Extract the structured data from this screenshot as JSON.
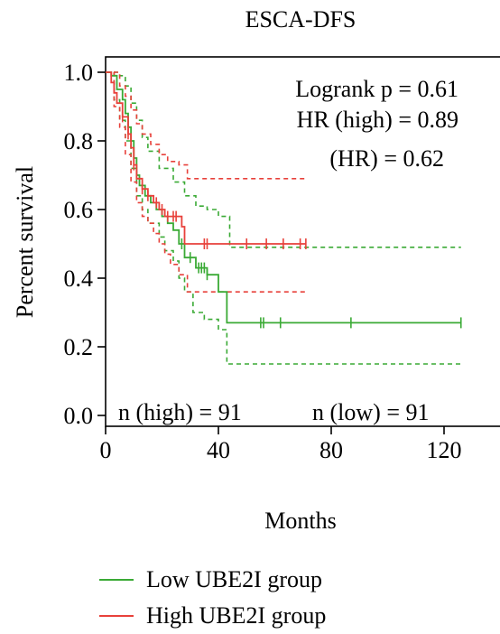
{
  "chart_data": {
    "type": "line",
    "title": "ESCA-DFS",
    "xlabel": "Months",
    "ylabel": "Percent survival",
    "xlim": [
      0,
      130
    ],
    "ylim": [
      0,
      1.05
    ],
    "xticks": [
      0,
      40,
      80,
      120
    ],
    "yticks": [
      0.0,
      0.2,
      0.4,
      0.6,
      0.8,
      1.0
    ],
    "annotations": {
      "logrank": "Logrank p = 0.61",
      "hr": "HR (high) = 0.89",
      "hr_p": "(HR) = 0.62",
      "n_high": "n (high) = 91",
      "n_low": "n (low) = 91"
    },
    "colors": {
      "low": "#3aaa35",
      "high": "#e8413b"
    },
    "series": [
      {
        "name": "Low UBE2I group",
        "color": "#3aaa35",
        "steps": [
          [
            0,
            1.0
          ],
          [
            2,
            0.99
          ],
          [
            4,
            0.95
          ],
          [
            6,
            0.92
          ],
          [
            7,
            0.88
          ],
          [
            8,
            0.84
          ],
          [
            9,
            0.8
          ],
          [
            10,
            0.75
          ],
          [
            11,
            0.7
          ],
          [
            12,
            0.67
          ],
          [
            14,
            0.64
          ],
          [
            16,
            0.62
          ],
          [
            18,
            0.6
          ],
          [
            20,
            0.58
          ],
          [
            22,
            0.56
          ],
          [
            24,
            0.54
          ],
          [
            26,
            0.5
          ],
          [
            28,
            0.46
          ],
          [
            32,
            0.43
          ],
          [
            36,
            0.41
          ],
          [
            40,
            0.36
          ],
          [
            43,
            0.27
          ],
          [
            126,
            0.27
          ]
        ],
        "censor_x": [
          27,
          30,
          33,
          34,
          35,
          36,
          55,
          56,
          62,
          87,
          126
        ],
        "ci_upper": [
          [
            0,
            1.0
          ],
          [
            3,
            1.0
          ],
          [
            5,
            0.99
          ],
          [
            7,
            0.96
          ],
          [
            9,
            0.91
          ],
          [
            11,
            0.86
          ],
          [
            13,
            0.81
          ],
          [
            15,
            0.77
          ],
          [
            19,
            0.72
          ],
          [
            24,
            0.68
          ],
          [
            28,
            0.64
          ],
          [
            32,
            0.61
          ],
          [
            36,
            0.6
          ],
          [
            40,
            0.58
          ],
          [
            44,
            0.49
          ],
          [
            126,
            0.49
          ]
        ],
        "ci_lower": [
          [
            0,
            1.0
          ],
          [
            3,
            0.92
          ],
          [
            5,
            0.86
          ],
          [
            7,
            0.8
          ],
          [
            9,
            0.72
          ],
          [
            11,
            0.64
          ],
          [
            13,
            0.6
          ],
          [
            15,
            0.56
          ],
          [
            19,
            0.52
          ],
          [
            21,
            0.48
          ],
          [
            24,
            0.45
          ],
          [
            26,
            0.4
          ],
          [
            28,
            0.36
          ],
          [
            31,
            0.3
          ],
          [
            35,
            0.28
          ],
          [
            40,
            0.25
          ],
          [
            43,
            0.15
          ],
          [
            126,
            0.15
          ]
        ]
      },
      {
        "name": "High UBE2I group",
        "color": "#e8413b",
        "steps": [
          [
            0,
            1.0
          ],
          [
            2,
            0.97
          ],
          [
            3,
            0.94
          ],
          [
            4,
            0.91
          ],
          [
            6,
            0.87
          ],
          [
            8,
            0.82
          ],
          [
            9,
            0.78
          ],
          [
            10,
            0.73
          ],
          [
            11,
            0.69
          ],
          [
            13,
            0.66
          ],
          [
            15,
            0.64
          ],
          [
            17,
            0.62
          ],
          [
            19,
            0.6
          ],
          [
            21,
            0.58
          ],
          [
            27,
            0.55
          ],
          [
            28,
            0.5
          ],
          [
            30,
            0.5
          ],
          [
            71,
            0.5
          ]
        ],
        "censor_x": [
          6,
          8,
          10,
          13,
          15,
          18,
          20,
          22,
          24,
          25,
          35,
          36,
          50,
          57,
          63,
          69,
          71
        ],
        "ci_upper": [
          [
            0,
            1.0
          ],
          [
            3,
            1.0
          ],
          [
            5,
            0.96
          ],
          [
            7,
            0.93
          ],
          [
            9,
            0.89
          ],
          [
            11,
            0.85
          ],
          [
            13,
            0.82
          ],
          [
            16,
            0.79
          ],
          [
            19,
            0.76
          ],
          [
            22,
            0.74
          ],
          [
            26,
            0.73
          ],
          [
            29,
            0.69
          ],
          [
            71,
            0.69
          ]
        ],
        "ci_lower": [
          [
            0,
            1.0
          ],
          [
            3,
            0.9
          ],
          [
            5,
            0.84
          ],
          [
            7,
            0.76
          ],
          [
            9,
            0.68
          ],
          [
            11,
            0.62
          ],
          [
            13,
            0.58
          ],
          [
            15,
            0.56
          ],
          [
            17,
            0.53
          ],
          [
            19,
            0.5
          ],
          [
            21,
            0.47
          ],
          [
            23,
            0.44
          ],
          [
            26,
            0.41
          ],
          [
            29,
            0.36
          ],
          [
            71,
            0.36
          ]
        ]
      }
    ]
  }
}
